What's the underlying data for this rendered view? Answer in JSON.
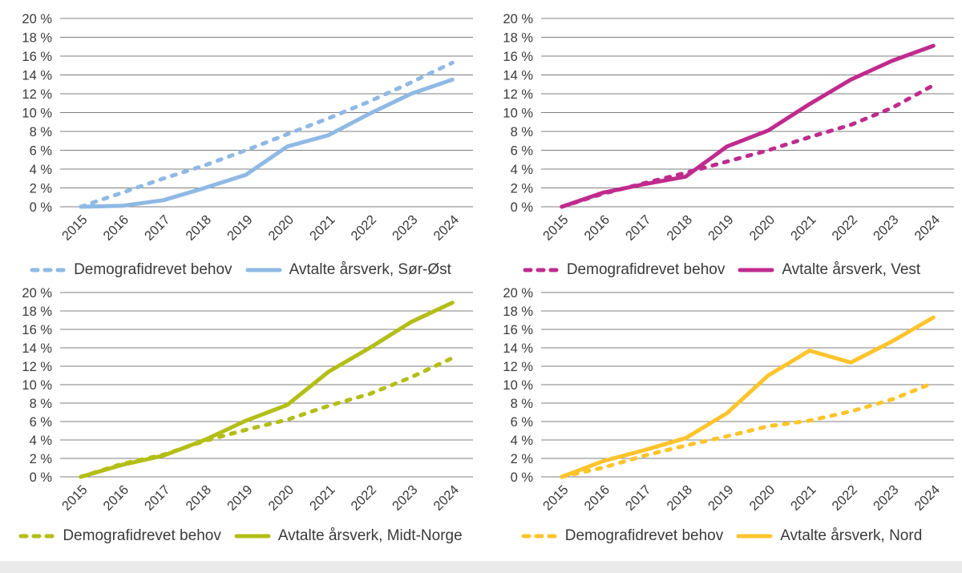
{
  "page": {
    "background": "#ffffff",
    "footer_color": "#eaeaea"
  },
  "axis": {
    "grid_color": "#7f7f7f",
    "text_color": "#3a3a3a",
    "y_ticks": [
      0,
      2,
      4,
      6,
      8,
      10,
      12,
      14,
      16,
      18,
      20
    ],
    "y_tick_labels": [
      "0 %",
      "2 %",
      "4 %",
      "6 %",
      "8 %",
      "10 %",
      "12 %",
      "14 %",
      "16 %",
      "18 %",
      "20 %"
    ],
    "x_tick_labels": [
      "2015",
      "2016",
      "2017",
      "2018",
      "2019",
      "2020",
      "2021",
      "2022",
      "2023",
      "2024"
    ]
  },
  "chart_data": [
    {
      "type": "line",
      "region": "Sør-Øst",
      "color": "#8FB9E4",
      "categories": [
        "2015",
        "2016",
        "2017",
        "2018",
        "2019",
        "2020",
        "2021",
        "2022",
        "2023",
        "2024"
      ],
      "ylim": [
        0,
        20
      ],
      "grid": true,
      "legend_position": "bottom",
      "series": [
        {
          "name": "Demografidrevet behov",
          "style": "dashed",
          "values": [
            0,
            1.5,
            3.0,
            4.4,
            6.0,
            7.7,
            9.4,
            11.2,
            13.2,
            15.3
          ]
        },
        {
          "name": "Avtalte årsverk, Sør-Øst",
          "style": "solid",
          "values": [
            0,
            0.1,
            0.7,
            2.0,
            3.4,
            6.4,
            7.6,
            9.9,
            12.0,
            13.5
          ]
        }
      ]
    },
    {
      "type": "line",
      "region": "Vest",
      "color": "#BF2B8D",
      "categories": [
        "2015",
        "2016",
        "2017",
        "2018",
        "2019",
        "2020",
        "2021",
        "2022",
        "2023",
        "2024"
      ],
      "ylim": [
        0,
        20
      ],
      "grid": true,
      "legend_position": "bottom",
      "series": [
        {
          "name": "Demografidrevet behov",
          "style": "dashed",
          "values": [
            0,
            1.4,
            2.5,
            3.6,
            4.8,
            6.0,
            7.4,
            8.7,
            10.5,
            12.9
          ]
        },
        {
          "name": "Avtalte årsverk, Vest",
          "style": "solid",
          "values": [
            0,
            1.5,
            2.4,
            3.2,
            6.4,
            8.1,
            10.9,
            13.5,
            15.5,
            17.1
          ]
        }
      ]
    },
    {
      "type": "line",
      "region": "Midt-Norge",
      "color": "#B3BE16",
      "categories": [
        "2015",
        "2016",
        "2017",
        "2018",
        "2019",
        "2020",
        "2021",
        "2022",
        "2023",
        "2024"
      ],
      "ylim": [
        0,
        20
      ],
      "grid": true,
      "legend_position": "bottom",
      "series": [
        {
          "name": "Demografidrevet behov",
          "style": "dashed",
          "values": [
            0,
            1.4,
            2.4,
            3.9,
            5.1,
            6.2,
            7.7,
            9.0,
            10.8,
            12.9
          ]
        },
        {
          "name": "Avtalte årsverk, Midt-Norge",
          "style": "solid",
          "values": [
            0,
            1.3,
            2.3,
            4.0,
            6.1,
            7.8,
            11.4,
            14.0,
            16.8,
            18.9
          ]
        }
      ]
    },
    {
      "type": "line",
      "region": "Nord",
      "color": "#FFC42C",
      "categories": [
        "2015",
        "2016",
        "2017",
        "2018",
        "2019",
        "2020",
        "2021",
        "2022",
        "2023",
        "2024"
      ],
      "ylim": [
        0,
        20
      ],
      "grid": true,
      "legend_position": "bottom",
      "series": [
        {
          "name": "Demografidrevet behov",
          "style": "dashed",
          "values": [
            0,
            1.0,
            2.3,
            3.4,
            4.4,
            5.5,
            6.1,
            7.1,
            8.4,
            10.2
          ]
        },
        {
          "name": "Avtalte årsverk, Nord",
          "style": "solid",
          "values": [
            0,
            1.7,
            2.9,
            4.2,
            6.9,
            11.0,
            13.7,
            12.4,
            14.7,
            17.3
          ]
        }
      ]
    }
  ]
}
